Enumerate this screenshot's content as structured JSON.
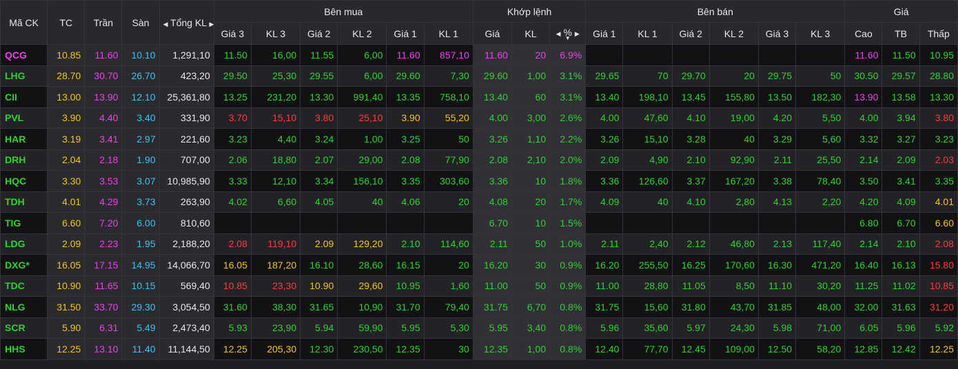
{
  "header": {
    "symbol": "Mã CK",
    "ref": "TC",
    "ceil": "Trần",
    "floor": "Sàn",
    "total_vol": "Tổng KL",
    "buy_group": "Bên mua",
    "match_group": "Khớp lệnh",
    "sell_group": "Bên bán",
    "price_group": "Giá",
    "buy_cols": [
      "Giá 3",
      "KL 3",
      "Giá 2",
      "KL 2",
      "Giá 1",
      "KL 1"
    ],
    "match_cols": [
      "Giá",
      "KL",
      "%"
    ],
    "sell_cols": [
      "Giá 1",
      "KL 1",
      "Giá 2",
      "KL 2",
      "Giá 3",
      "KL 3"
    ],
    "price_cols": [
      "Cao",
      "TB",
      "Thấp"
    ]
  },
  "icons": {
    "left": "caret-left-icon",
    "right": "caret-right-icon",
    "sort": "sort-down-icon"
  },
  "colors": {
    "ref": "#f5c518",
    "ceil": "#f23ef2",
    "floor": "#36c6f5",
    "up": "#2fd32f",
    "down": "#ff3a3a",
    "neutral": "#e8e8e8"
  },
  "rows": [
    {
      "s": "QCG",
      "sc": "ceil",
      "tc": "10.85",
      "tr": "11.60",
      "sa": "10.10",
      "tv": "1,291,10",
      "b": [
        [
          "11.50",
          "up"
        ],
        [
          "16,00",
          "up"
        ],
        [
          "11.55",
          "up"
        ],
        [
          "6,00",
          "up"
        ],
        [
          "11.60",
          "ceil"
        ],
        [
          "857,10",
          "ceil"
        ]
      ],
      "m": [
        [
          "11.60",
          "ceil"
        ],
        [
          "20",
          "ceil"
        ],
        [
          "6.9%",
          "ceil"
        ]
      ],
      "a": [
        [
          "",
          ""
        ],
        [
          "",
          ""
        ],
        [
          "",
          ""
        ],
        [
          "",
          ""
        ],
        [
          "",
          ""
        ],
        [
          "",
          ""
        ]
      ],
      "p": [
        [
          "11.60",
          "ceil"
        ],
        [
          "11.50",
          "up"
        ],
        [
          "10.95",
          "up"
        ]
      ]
    },
    {
      "s": "LHG",
      "sc": "up",
      "tc": "28.70",
      "tr": "30.70",
      "sa": "26.70",
      "tv": "423,20",
      "b": [
        [
          "29.50",
          "up"
        ],
        [
          "25,30",
          "up"
        ],
        [
          "29.55",
          "up"
        ],
        [
          "6,00",
          "up"
        ],
        [
          "29.60",
          "up"
        ],
        [
          "7,30",
          "up"
        ]
      ],
      "m": [
        [
          "29.60",
          "up"
        ],
        [
          "1,00",
          "up"
        ],
        [
          "3.1%",
          "up"
        ]
      ],
      "a": [
        [
          "29.65",
          "up"
        ],
        [
          "70",
          "up"
        ],
        [
          "29.70",
          "up"
        ],
        [
          "20",
          "up"
        ],
        [
          "29.75",
          "up"
        ],
        [
          "50",
          "up"
        ]
      ],
      "p": [
        [
          "30.50",
          "up"
        ],
        [
          "29.57",
          "up"
        ],
        [
          "28.80",
          "up"
        ]
      ]
    },
    {
      "s": "CII",
      "sc": "up",
      "tc": "13.00",
      "tr": "13.90",
      "sa": "12.10",
      "tv": "25,361,80",
      "b": [
        [
          "13.25",
          "up"
        ],
        [
          "231,20",
          "up"
        ],
        [
          "13.30",
          "up"
        ],
        [
          "991,40",
          "up"
        ],
        [
          "13.35",
          "up"
        ],
        [
          "758,10",
          "up"
        ]
      ],
      "m": [
        [
          "13.40",
          "up"
        ],
        [
          "60",
          "up"
        ],
        [
          "3.1%",
          "up"
        ]
      ],
      "a": [
        [
          "13.40",
          "up"
        ],
        [
          "198,10",
          "up"
        ],
        [
          "13.45",
          "up"
        ],
        [
          "155,80",
          "up"
        ],
        [
          "13.50",
          "up"
        ],
        [
          "182,30",
          "up"
        ]
      ],
      "p": [
        [
          "13.90",
          "ceil"
        ],
        [
          "13.58",
          "up"
        ],
        [
          "13.30",
          "up"
        ]
      ]
    },
    {
      "s": "PVL",
      "sc": "up",
      "tc": "3.90",
      "tr": "4.40",
      "sa": "3.40",
      "tv": "331,90",
      "b": [
        [
          "3.70",
          "down"
        ],
        [
          "15,10",
          "down"
        ],
        [
          "3.80",
          "down"
        ],
        [
          "25,10",
          "down"
        ],
        [
          "3.90",
          "ref"
        ],
        [
          "55,20",
          "ref"
        ]
      ],
      "m": [
        [
          "4.00",
          "up"
        ],
        [
          "3,00",
          "up"
        ],
        [
          "2.6%",
          "up"
        ]
      ],
      "a": [
        [
          "4.00",
          "up"
        ],
        [
          "47,60",
          "up"
        ],
        [
          "4.10",
          "up"
        ],
        [
          "19,00",
          "up"
        ],
        [
          "4.20",
          "up"
        ],
        [
          "5,50",
          "up"
        ]
      ],
      "p": [
        [
          "4.00",
          "up"
        ],
        [
          "3.94",
          "up"
        ],
        [
          "3.80",
          "down"
        ]
      ]
    },
    {
      "s": "HAR",
      "sc": "up",
      "tc": "3.19",
      "tr": "3.41",
      "sa": "2.97",
      "tv": "221,60",
      "b": [
        [
          "3.23",
          "up"
        ],
        [
          "4,40",
          "up"
        ],
        [
          "3.24",
          "up"
        ],
        [
          "1,00",
          "up"
        ],
        [
          "3.25",
          "up"
        ],
        [
          "50",
          "up"
        ]
      ],
      "m": [
        [
          "3.26",
          "up"
        ],
        [
          "1,10",
          "up"
        ],
        [
          "2.2%",
          "up"
        ]
      ],
      "a": [
        [
          "3.26",
          "up"
        ],
        [
          "15,10",
          "up"
        ],
        [
          "3.28",
          "up"
        ],
        [
          "40",
          "up"
        ],
        [
          "3.29",
          "up"
        ],
        [
          "5,60",
          "up"
        ]
      ],
      "p": [
        [
          "3.32",
          "up"
        ],
        [
          "3.27",
          "up"
        ],
        [
          "3.23",
          "up"
        ]
      ]
    },
    {
      "s": "DRH",
      "sc": "up",
      "tc": "2.04",
      "tr": "2.18",
      "sa": "1.90",
      "tv": "707,00",
      "b": [
        [
          "2.06",
          "up"
        ],
        [
          "18,80",
          "up"
        ],
        [
          "2.07",
          "up"
        ],
        [
          "29,00",
          "up"
        ],
        [
          "2.08",
          "up"
        ],
        [
          "77,90",
          "up"
        ]
      ],
      "m": [
        [
          "2.08",
          "up"
        ],
        [
          "2,10",
          "up"
        ],
        [
          "2.0%",
          "up"
        ]
      ],
      "a": [
        [
          "2.09",
          "up"
        ],
        [
          "4,90",
          "up"
        ],
        [
          "2.10",
          "up"
        ],
        [
          "92,90",
          "up"
        ],
        [
          "2.11",
          "up"
        ],
        [
          "25,50",
          "up"
        ]
      ],
      "p": [
        [
          "2.14",
          "up"
        ],
        [
          "2.09",
          "up"
        ],
        [
          "2.03",
          "down"
        ]
      ]
    },
    {
      "s": "HQC",
      "sc": "up",
      "tc": "3.30",
      "tr": "3.53",
      "sa": "3.07",
      "tv": "10,985,90",
      "b": [
        [
          "3.33",
          "up"
        ],
        [
          "12,10",
          "up"
        ],
        [
          "3.34",
          "up"
        ],
        [
          "156,10",
          "up"
        ],
        [
          "3.35",
          "up"
        ],
        [
          "303,60",
          "up"
        ]
      ],
      "m": [
        [
          "3.36",
          "up"
        ],
        [
          "10",
          "up"
        ],
        [
          "1.8%",
          "up"
        ]
      ],
      "a": [
        [
          "3.36",
          "up"
        ],
        [
          "126,60",
          "up"
        ],
        [
          "3.37",
          "up"
        ],
        [
          "167,20",
          "up"
        ],
        [
          "3.38",
          "up"
        ],
        [
          "78,40",
          "up"
        ]
      ],
      "p": [
        [
          "3.50",
          "up"
        ],
        [
          "3.41",
          "up"
        ],
        [
          "3.35",
          "up"
        ]
      ]
    },
    {
      "s": "TDH",
      "sc": "up",
      "tc": "4.01",
      "tr": "4.29",
      "sa": "3.73",
      "tv": "263,90",
      "b": [
        [
          "4.02",
          "up"
        ],
        [
          "6,60",
          "up"
        ],
        [
          "4.05",
          "up"
        ],
        [
          "40",
          "up"
        ],
        [
          "4.06",
          "up"
        ],
        [
          "20",
          "up"
        ]
      ],
      "m": [
        [
          "4.08",
          "up"
        ],
        [
          "20",
          "up"
        ],
        [
          "1.7%",
          "up"
        ]
      ],
      "a": [
        [
          "4.09",
          "up"
        ],
        [
          "40",
          "up"
        ],
        [
          "4.10",
          "up"
        ],
        [
          "2,80",
          "up"
        ],
        [
          "4.13",
          "up"
        ],
        [
          "2,20",
          "up"
        ]
      ],
      "p": [
        [
          "4.20",
          "up"
        ],
        [
          "4.09",
          "up"
        ],
        [
          "4.01",
          "ref"
        ]
      ]
    },
    {
      "s": "TIG",
      "sc": "up",
      "tc": "6.60",
      "tr": "7.20",
      "sa": "6.00",
      "tv": "810,60",
      "b": [
        [
          "",
          ""
        ],
        [
          "",
          ""
        ],
        [
          "",
          ""
        ],
        [
          "",
          ""
        ],
        [
          "",
          ""
        ],
        [
          "",
          ""
        ]
      ],
      "m": [
        [
          "6.70",
          "up"
        ],
        [
          "10",
          "up"
        ],
        [
          "1.5%",
          "up"
        ]
      ],
      "a": [
        [
          "",
          ""
        ],
        [
          "",
          ""
        ],
        [
          "",
          ""
        ],
        [
          "",
          ""
        ],
        [
          "",
          ""
        ],
        [
          "",
          ""
        ]
      ],
      "p": [
        [
          "6.80",
          "up"
        ],
        [
          "6.70",
          "up"
        ],
        [
          "6.60",
          "ref"
        ]
      ]
    },
    {
      "s": "LDG",
      "sc": "up",
      "tc": "2.09",
      "tr": "2.23",
      "sa": "1.95",
      "tv": "2,188,20",
      "b": [
        [
          "2.08",
          "down"
        ],
        [
          "119,10",
          "down"
        ],
        [
          "2.09",
          "ref"
        ],
        [
          "129,20",
          "ref"
        ],
        [
          "2.10",
          "up"
        ],
        [
          "114,60",
          "up"
        ]
      ],
      "m": [
        [
          "2.11",
          "up"
        ],
        [
          "50",
          "up"
        ],
        [
          "1.0%",
          "up"
        ]
      ],
      "a": [
        [
          "2.11",
          "up"
        ],
        [
          "2,40",
          "up"
        ],
        [
          "2.12",
          "up"
        ],
        [
          "46,80",
          "up"
        ],
        [
          "2.13",
          "up"
        ],
        [
          "117,40",
          "up"
        ]
      ],
      "p": [
        [
          "2.14",
          "up"
        ],
        [
          "2.10",
          "up"
        ],
        [
          "2.08",
          "down"
        ]
      ]
    },
    {
      "s": "DXG*",
      "sc": "up",
      "tc": "16.05",
      "tr": "17.15",
      "sa": "14.95",
      "tv": "14,066,70",
      "b": [
        [
          "16.05",
          "ref"
        ],
        [
          "187,20",
          "ref"
        ],
        [
          "16.10",
          "up"
        ],
        [
          "28,60",
          "up"
        ],
        [
          "16.15",
          "up"
        ],
        [
          "20",
          "up"
        ]
      ],
      "m": [
        [
          "16.20",
          "up"
        ],
        [
          "30",
          "up"
        ],
        [
          "0.9%",
          "up"
        ]
      ],
      "a": [
        [
          "16.20",
          "up"
        ],
        [
          "255,50",
          "up"
        ],
        [
          "16.25",
          "up"
        ],
        [
          "170,60",
          "up"
        ],
        [
          "16.30",
          "up"
        ],
        [
          "471,20",
          "up"
        ]
      ],
      "p": [
        [
          "16.40",
          "up"
        ],
        [
          "16.13",
          "up"
        ],
        [
          "15.80",
          "down"
        ]
      ]
    },
    {
      "s": "TDC",
      "sc": "up",
      "tc": "10.90",
      "tr": "11.65",
      "sa": "10.15",
      "tv": "569,40",
      "b": [
        [
          "10.85",
          "down"
        ],
        [
          "23,30",
          "down"
        ],
        [
          "10.90",
          "ref"
        ],
        [
          "29,60",
          "ref"
        ],
        [
          "10.95",
          "up"
        ],
        [
          "1,60",
          "up"
        ]
      ],
      "m": [
        [
          "11.00",
          "up"
        ],
        [
          "50",
          "up"
        ],
        [
          "0.9%",
          "up"
        ]
      ],
      "a": [
        [
          "11.00",
          "up"
        ],
        [
          "28,80",
          "up"
        ],
        [
          "11.05",
          "up"
        ],
        [
          "8,50",
          "up"
        ],
        [
          "11.10",
          "up"
        ],
        [
          "30,20",
          "up"
        ]
      ],
      "p": [
        [
          "11.25",
          "up"
        ],
        [
          "11.02",
          "up"
        ],
        [
          "10.85",
          "down"
        ]
      ]
    },
    {
      "s": "NLG",
      "sc": "up",
      "tc": "31.50",
      "tr": "33.70",
      "sa": "29.30",
      "tv": "3,054,50",
      "b": [
        [
          "31.60",
          "up"
        ],
        [
          "38,30",
          "up"
        ],
        [
          "31.65",
          "up"
        ],
        [
          "10,90",
          "up"
        ],
        [
          "31.70",
          "up"
        ],
        [
          "79,40",
          "up"
        ]
      ],
      "m": [
        [
          "31.75",
          "up"
        ],
        [
          "6,70",
          "up"
        ],
        [
          "0.8%",
          "up"
        ]
      ],
      "a": [
        [
          "31.75",
          "up"
        ],
        [
          "15,60",
          "up"
        ],
        [
          "31.80",
          "up"
        ],
        [
          "43,70",
          "up"
        ],
        [
          "31.85",
          "up"
        ],
        [
          "48,00",
          "up"
        ]
      ],
      "p": [
        [
          "32.00",
          "up"
        ],
        [
          "31.63",
          "up"
        ],
        [
          "31.20",
          "down"
        ]
      ]
    },
    {
      "s": "SCR",
      "sc": "up",
      "tc": "5.90",
      "tr": "6.31",
      "sa": "5.49",
      "tv": "2,473,40",
      "b": [
        [
          "5.93",
          "up"
        ],
        [
          "23,90",
          "up"
        ],
        [
          "5.94",
          "up"
        ],
        [
          "59,90",
          "up"
        ],
        [
          "5.95",
          "up"
        ],
        [
          "5,30",
          "up"
        ]
      ],
      "m": [
        [
          "5.95",
          "up"
        ],
        [
          "3,40",
          "up"
        ],
        [
          "0.8%",
          "up"
        ]
      ],
      "a": [
        [
          "5.96",
          "up"
        ],
        [
          "35,60",
          "up"
        ],
        [
          "5.97",
          "up"
        ],
        [
          "24,30",
          "up"
        ],
        [
          "5.98",
          "up"
        ],
        [
          "71,00",
          "up"
        ]
      ],
      "p": [
        [
          "6.05",
          "up"
        ],
        [
          "5.96",
          "up"
        ],
        [
          "5.92",
          "up"
        ]
      ]
    },
    {
      "s": "HHS",
      "sc": "up",
      "tc": "12.25",
      "tr": "13.10",
      "sa": "11.40",
      "tv": "11,144,50",
      "b": [
        [
          "12.25",
          "ref"
        ],
        [
          "205,30",
          "ref"
        ],
        [
          "12.30",
          "up"
        ],
        [
          "230,50",
          "up"
        ],
        [
          "12.35",
          "up"
        ],
        [
          "30",
          "up"
        ]
      ],
      "m": [
        [
          "12.35",
          "up"
        ],
        [
          "1,00",
          "up"
        ],
        [
          "0.8%",
          "up"
        ]
      ],
      "a": [
        [
          "12.40",
          "up"
        ],
        [
          "77,70",
          "up"
        ],
        [
          "12.45",
          "up"
        ],
        [
          "109,00",
          "up"
        ],
        [
          "12.50",
          "up"
        ],
        [
          "58,20",
          "up"
        ]
      ],
      "p": [
        [
          "12.85",
          "up"
        ],
        [
          "12.42",
          "up"
        ],
        [
          "12.25",
          "ref"
        ]
      ]
    }
  ]
}
